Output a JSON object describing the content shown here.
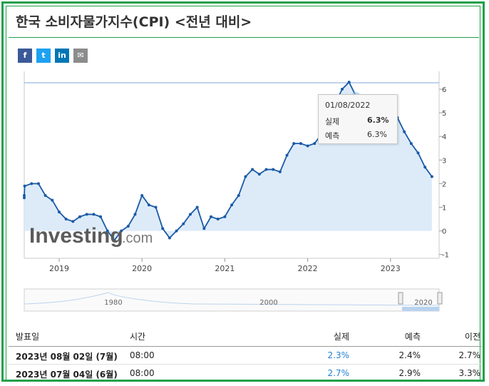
{
  "page": {
    "title": "한국 소비자물가지수(CPI) <전년 대비>",
    "share": [
      {
        "name": "facebook",
        "glyph": "f",
        "color": "#3b5998"
      },
      {
        "name": "twitter",
        "glyph": "t",
        "color": "#1da1f2"
      },
      {
        "name": "linkedin",
        "glyph": "in",
        "color": "#0077b5"
      },
      {
        "name": "email",
        "glyph": "✉",
        "color": "#8c8c8c"
      }
    ]
  },
  "chart_data": {
    "type": "line",
    "watermark": "Investing.com",
    "ylim": [
      -1,
      6.5
    ],
    "y_ticks": [
      6,
      5,
      4,
      3,
      2,
      1,
      0,
      -1
    ],
    "x_tick_labels": [
      {
        "label": "2019",
        "x": "2019-01"
      },
      {
        "label": "2020",
        "x": "2020-01"
      },
      {
        "label": "2021",
        "x": "2021-01"
      },
      {
        "label": "2022",
        "x": "2022-01"
      },
      {
        "label": "2023",
        "x": "2023-01"
      }
    ],
    "series": [
      {
        "x": [
          "2018-06",
          "2018-07",
          "2018-08",
          "2018-09",
          "2018-10",
          "2018-11",
          "2018-12",
          "2019-01",
          "2019-02",
          "2019-03",
          "2019-04",
          "2019-05",
          "2019-06",
          "2019-07",
          "2019-08",
          "2019-09",
          "2019-10",
          "2019-11",
          "2019-12",
          "2020-01",
          "2020-02",
          "2020-03",
          "2020-04",
          "2020-05",
          "2020-06",
          "2020-07",
          "2020-08",
          "2020-09",
          "2020-10",
          "2020-11",
          "2020-12",
          "2021-01",
          "2021-02",
          "2021-03",
          "2021-04",
          "2021-05",
          "2021-06",
          "2021-07",
          "2021-08",
          "2021-09",
          "2021-10",
          "2021-11",
          "2021-12",
          "2022-01",
          "2022-02",
          "2022-03",
          "2022-04",
          "2022-05",
          "2022-06",
          "2022-07",
          "2022-08",
          "2022-09",
          "2022-10",
          "2022-11",
          "2022-12",
          "2023-01",
          "2023-02",
          "2023-03",
          "2023-04",
          "2023-05",
          "2023-06",
          "2023-07"
        ],
        "values": [
          1.5,
          1.4,
          1.9,
          2.0,
          2.0,
          1.5,
          1.3,
          0.8,
          0.5,
          0.4,
          0.6,
          0.7,
          0.7,
          0.6,
          0.0,
          -0.4,
          0.0,
          0.2,
          0.7,
          1.5,
          1.1,
          1.0,
          0.1,
          -0.3,
          0.0,
          0.3,
          0.7,
          1.0,
          0.1,
          0.6,
          0.5,
          0.6,
          1.1,
          1.5,
          2.3,
          2.6,
          2.4,
          2.6,
          2.6,
          2.5,
          3.2,
          3.7,
          3.7,
          3.6,
          3.7,
          4.1,
          4.8,
          5.4,
          6.0,
          6.3,
          5.7,
          5.6,
          5.7,
          5.0,
          5.0,
          5.2,
          4.8,
          4.2,
          3.7,
          3.3,
          2.7,
          2.3
        ]
      }
    ],
    "navigator": {
      "labels": [
        "1980",
        "2000",
        "2020"
      ]
    },
    "tooltip": {
      "date": "01/08/2022",
      "rows": [
        {
          "label": "실제",
          "value": "6.3%"
        },
        {
          "label": "예측",
          "value": "6.3%"
        }
      ]
    }
  },
  "table": {
    "headers": [
      "발표일",
      "시간",
      "실제",
      "예측",
      "이전"
    ],
    "rows": [
      {
        "date": "2023년 08월 02일 (7월)",
        "time": "08:00",
        "actual": "2.3%",
        "forecast": "2.4%",
        "previous": "2.7%"
      },
      {
        "date": "2023년 07월 04일 (6월)",
        "time": "08:00",
        "actual": "2.7%",
        "forecast": "2.9%",
        "previous": "3.3%"
      }
    ]
  },
  "colors": {
    "line": "#1a5aa6",
    "fill": "#d7e8f8",
    "accent": "#1e7fd0",
    "border": "#22a04a"
  }
}
